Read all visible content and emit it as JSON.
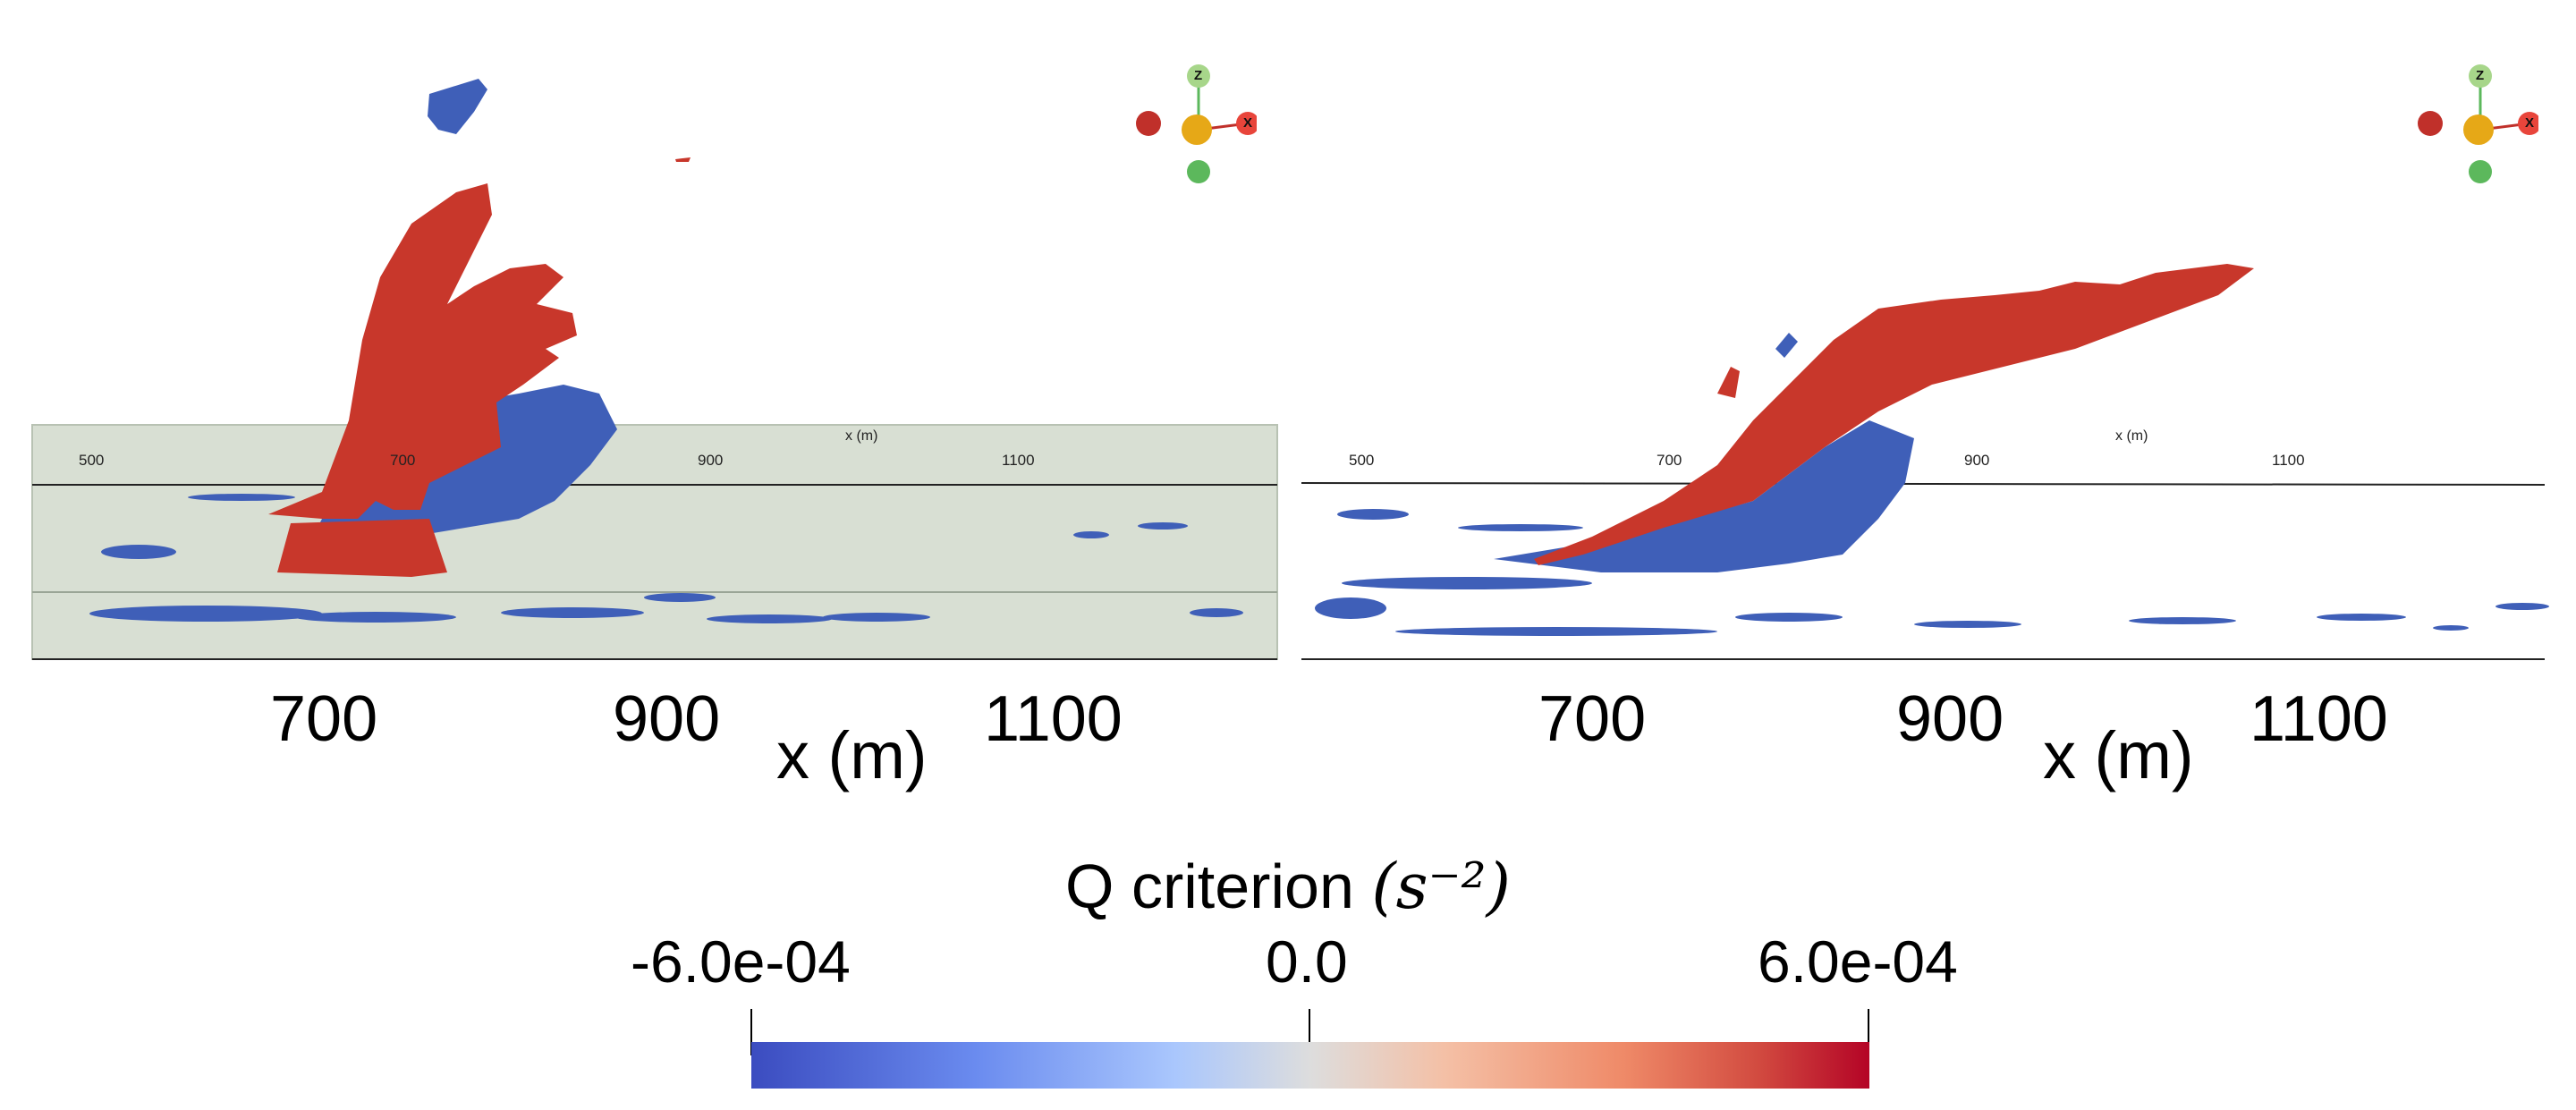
{
  "panels": [
    {
      "id": "left",
      "plane_ticks": [
        "500",
        "700",
        "900",
        "1100"
      ],
      "plane_axis_label": "x (m)",
      "ticks": [
        "700",
        "900",
        "1100"
      ],
      "axis_title": "x (m)",
      "orientation_axes": {
        "z": "Z",
        "x": "X"
      }
    },
    {
      "id": "right",
      "plane_ticks": [
        "500",
        "700",
        "900",
        "1100"
      ],
      "plane_axis_label": "x (m)",
      "ticks": [
        "700",
        "900",
        "1100"
      ],
      "axis_title": "x (m)",
      "orientation_axes": {
        "z": "Z",
        "x": "X"
      }
    }
  ],
  "colorbar": {
    "title": "Q criterion",
    "unit": "(s⁻²)",
    "min_label": "-6.0e-04",
    "mid_label": "0.0",
    "max_label": "6.0e-04",
    "min_value": -0.0006,
    "max_value": 0.0006,
    "colors": {
      "negative": "#3b4cc0",
      "neutral": "#dddddd",
      "positive": "#b40426"
    }
  },
  "colors": {
    "vortex_positive": "#c8372b",
    "vortex_negative": "#3f5fb8",
    "ground_plane": "#d8dfd3",
    "orient_red": "#c0302a",
    "orient_yellow": "#e6a817",
    "orient_green": "#5cb85c",
    "orient_light_green": "#a7d68a"
  }
}
